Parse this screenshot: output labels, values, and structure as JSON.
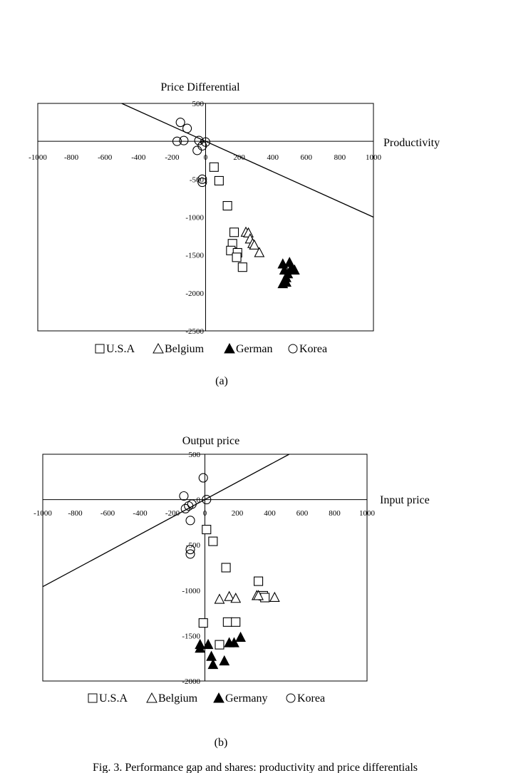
{
  "panels": {
    "a": {
      "panel_label": "(a)"
    },
    "b": {
      "panel_label": "(b)"
    }
  },
  "caption": "Fig. 3. Performance gap and shares: productivity and price differentials",
  "chart_data": [
    {
      "type": "scatter",
      "title": "",
      "xlabel": "Productivity",
      "ylabel": "Price Differential",
      "xlim": [
        -1000,
        1000
      ],
      "ylim": [
        -2500,
        500
      ],
      "x_ticks": [
        "-1000",
        "-800",
        "-600",
        "-400",
        "-200",
        "0",
        "200",
        "400",
        "600",
        "800",
        "1000"
      ],
      "y_ticks": [
        "500",
        "0",
        "-500",
        "-1000",
        "-1500",
        "-2000",
        "-2500"
      ],
      "grid": false,
      "legend_position": "bottom",
      "legend": {
        "usa": "U.S.A",
        "belgium": "Belgium",
        "german": "German",
        "korea": "Korea"
      },
      "line": [
        [
          -500,
          500
        ],
        [
          1000,
          -1000
        ]
      ],
      "series": [
        {
          "name": "U.S.A",
          "marker": "square-open",
          "points": [
            [
              50,
              -340
            ],
            [
              80,
              -520
            ],
            [
              130,
              -850
            ],
            [
              170,
              -1200
            ],
            [
              160,
              -1350
            ],
            [
              150,
              -1440
            ],
            [
              190,
              -1470
            ],
            [
              185,
              -1530
            ],
            [
              220,
              -1660
            ]
          ]
        },
        {
          "name": "Belgium",
          "marker": "triangle-open",
          "points": [
            [
              240,
              -1200
            ],
            [
              255,
              -1210
            ],
            [
              265,
              -1290
            ],
            [
              280,
              -1350
            ],
            [
              290,
              -1370
            ],
            [
              320,
              -1470
            ]
          ]
        },
        {
          "name": "German",
          "marker": "triangle-filled",
          "points": [
            [
              460,
              -1620
            ],
            [
              500,
              -1600
            ],
            [
              470,
              -1700
            ],
            [
              490,
              -1750
            ],
            [
              510,
              -1680
            ],
            [
              530,
              -1700
            ],
            [
              480,
              -1800
            ],
            [
              460,
              -1880
            ],
            [
              480,
              -1860
            ]
          ]
        },
        {
          "name": "Korea",
          "marker": "circle-open",
          "points": [
            [
              -150,
              250
            ],
            [
              -110,
              170
            ],
            [
              -170,
              0
            ],
            [
              -130,
              10
            ],
            [
              -40,
              10
            ],
            [
              -20,
              -60
            ],
            [
              -50,
              -120
            ],
            [
              0,
              -10
            ],
            [
              -20,
              -500
            ],
            [
              -20,
              -540
            ]
          ]
        }
      ]
    },
    {
      "type": "scatter",
      "title": "",
      "xlabel": "Input price",
      "ylabel": "Output price",
      "xlim": [
        -1000,
        1000
      ],
      "ylim": [
        -2000,
        500
      ],
      "x_ticks": [
        "-1000",
        "-800",
        "-600",
        "-400",
        "-200",
        "0",
        "200",
        "400",
        "600",
        "800",
        "1000"
      ],
      "y_ticks": [
        "500",
        "0",
        "-500",
        "-1000",
        "-1500",
        "-2000"
      ],
      "grid": false,
      "legend_position": "bottom",
      "legend": {
        "usa": "U.S.A",
        "belgium": "Belgium",
        "germany": "Germany",
        "korea": "Korea"
      },
      "line": [
        [
          -1000,
          -960
        ],
        [
          520,
          500
        ]
      ],
      "series": [
        {
          "name": "U.S.A",
          "marker": "square-open",
          "points": [
            [
              10,
              -330
            ],
            [
              50,
              -460
            ],
            [
              130,
              -750
            ],
            [
              330,
              -900
            ],
            [
              360,
              -1060
            ],
            [
              370,
              -1080
            ],
            [
              140,
              -1350
            ],
            [
              190,
              -1350
            ],
            [
              -10,
              -1360
            ],
            [
              90,
              -1600
            ]
          ]
        },
        {
          "name": "Belgium",
          "marker": "triangle-open",
          "points": [
            [
              90,
              -1100
            ],
            [
              150,
              -1070
            ],
            [
              190,
              -1090
            ],
            [
              320,
              -1060
            ],
            [
              330,
              -1060
            ],
            [
              430,
              -1080
            ]
          ]
        },
        {
          "name": "Germany",
          "marker": "triangle-filled",
          "points": [
            [
              -30,
              -1600
            ],
            [
              -30,
              -1640
            ],
            [
              20,
              -1600
            ],
            [
              40,
              -1730
            ],
            [
              50,
              -1820
            ],
            [
              120,
              -1780
            ],
            [
              150,
              -1580
            ],
            [
              180,
              -1580
            ],
            [
              220,
              -1520
            ]
          ]
        },
        {
          "name": "Korea",
          "marker": "circle-open",
          "points": [
            [
              -130,
              40
            ],
            [
              -10,
              240
            ],
            [
              10,
              0
            ],
            [
              -100,
              -70
            ],
            [
              -80,
              -50
            ],
            [
              -120,
              -100
            ],
            [
              -90,
              -230
            ],
            [
              -90,
              -550
            ],
            [
              -90,
              -600
            ]
          ]
        }
      ]
    }
  ]
}
